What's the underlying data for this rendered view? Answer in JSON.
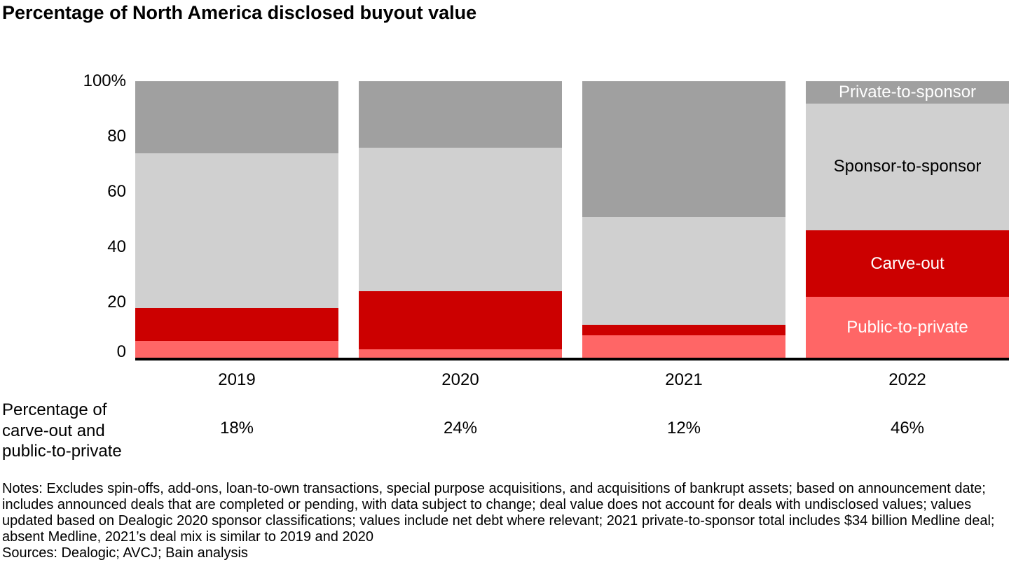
{
  "title": "Percentage of North America disclosed buyout value",
  "chart_data": {
    "type": "bar",
    "stacked": true,
    "title": "Percentage of North America disclosed buyout value",
    "categories": [
      "2019",
      "2020",
      "2021",
      "2022"
    ],
    "series": [
      {
        "name": "Public-to-private",
        "values": [
          6,
          3,
          8,
          22
        ],
        "color": "#ff6666",
        "label_color": "#ffffff"
      },
      {
        "name": "Carve-out",
        "values": [
          12,
          21,
          4,
          24
        ],
        "color": "#cc0000",
        "label_color": "#ffffff"
      },
      {
        "name": "Sponsor-to-sponsor",
        "values": [
          56,
          52,
          39,
          46
        ],
        "color": "#d0d0d0",
        "label_color": "#000000"
      },
      {
        "name": "Private-to-sponsor",
        "values": [
          26,
          24,
          49,
          8
        ],
        "color": "#a0a0a0",
        "label_color": "#ffffff"
      }
    ],
    "xlabel": "",
    "ylabel": "",
    "ylim": [
      0,
      100
    ],
    "yticks": [
      {
        "label": "0",
        "value": 0
      },
      {
        "label": "20",
        "value": 20
      },
      {
        "label": "40",
        "value": 40
      },
      {
        "label": "60",
        "value": 60
      },
      {
        "label": "80",
        "value": 80
      },
      {
        "label": "100%",
        "value": 100
      }
    ],
    "grid": false,
    "legend": "labels-inside-last-bar",
    "series_labels_shown_on_category": "2022"
  },
  "summary_row": {
    "label_lines": [
      "Percentage of",
      "carve-out and",
      "public-to-private"
    ],
    "values": [
      "18%",
      "24%",
      "12%",
      "46%"
    ]
  },
  "notes": "Notes: Excludes spin-offs, add-ons, loan-to-own transactions, special purpose acquisitions, and acquisitions of bankrupt assets; based on announcement date; includes announced deals that are completed or pending, with data subject to change; deal value does not account for deals with undisclosed values; values updated based on Dealogic 2020 sponsor classifications; values include net debt where relevant; 2021 private-to-sponsor total includes $34 billion Medline deal; absent Medline, 2021’s deal mix is similar to 2019 and 2020",
  "sources": "Sources: Dealogic; AVCJ; Bain analysis"
}
